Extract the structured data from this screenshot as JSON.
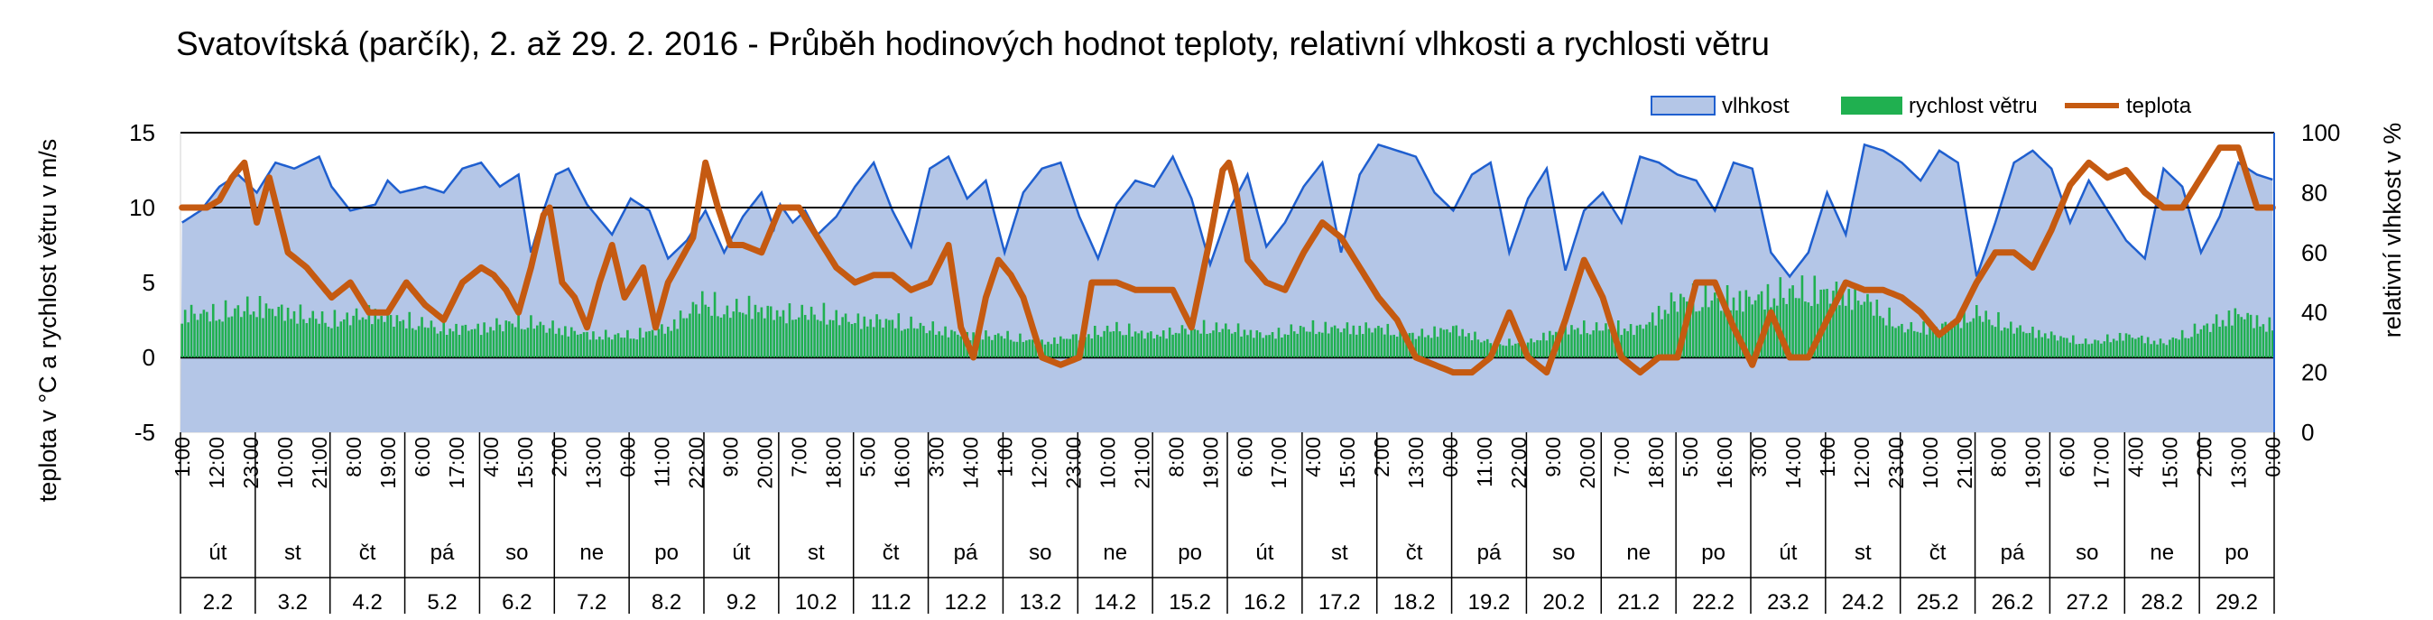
{
  "chart_data": {
    "type": "area+bar+line",
    "title": "Svatovítská (parčík), 2. až 29. 2. 2016 - Průběh hodinových hodnot teploty, relativní vlhkosti a rychlosti větru",
    "y_left_label": "teplota v °C a rychlost větru v m/s",
    "y_right_label": "relativní vlhkost v %",
    "y_left_range": [
      -5,
      15
    ],
    "y_left_ticks": [
      "15",
      "10",
      "5",
      "0",
      "-5"
    ],
    "y_right_range": [
      0,
      100
    ],
    "y_right_ticks": [
      "100",
      "80",
      "60",
      "40",
      "20",
      "0"
    ],
    "legend_position": "top-right",
    "grid": "horizontal lines at 0, 10 and 15",
    "legend": [
      {
        "name": "vlhkost",
        "color": "#b4c6e7",
        "stroke": "#1f5fcf"
      },
      {
        "name": "rychlost větru",
        "color": "#20b050"
      },
      {
        "name": "teplota",
        "color": "#c55a11"
      }
    ],
    "hour_tick_labels": [
      "1:00",
      "12:00",
      "23:00",
      "10:00",
      "21:00",
      "8:00",
      "19:00",
      "6:00",
      "17:00",
      "4:00",
      "15:00",
      "2:00",
      "13:00",
      "0:00",
      "11:00",
      "22:00",
      "9:00",
      "20:00",
      "7:00",
      "18:00",
      "5:00",
      "16:00",
      "3:00",
      "14:00",
      "1:00",
      "12:00",
      "23:00",
      "10:00",
      "21:00",
      "8:00",
      "19:00",
      "6:00",
      "17:00",
      "4:00",
      "15:00",
      "2:00",
      "13:00",
      "0:00",
      "11:00",
      "22:00",
      "9:00",
      "20:00",
      "7:00",
      "18:00",
      "5:00",
      "16:00",
      "3:00",
      "14:00",
      "1:00",
      "12:00",
      "23:00",
      "10:00",
      "21:00",
      "8:00",
      "19:00",
      "6:00",
      "17:00",
      "4:00",
      "15:00",
      "2:00",
      "13:00",
      "0:00"
    ],
    "days": [
      {
        "weekday": "út",
        "date": "2.2"
      },
      {
        "weekday": "st",
        "date": "3.2"
      },
      {
        "weekday": "čt",
        "date": "4.2"
      },
      {
        "weekday": "pá",
        "date": "5.2"
      },
      {
        "weekday": "so",
        "date": "6.2"
      },
      {
        "weekday": "ne",
        "date": "7.2"
      },
      {
        "weekday": "po",
        "date": "8.2"
      },
      {
        "weekday": "út",
        "date": "9.2"
      },
      {
        "weekday": "st",
        "date": "10.2"
      },
      {
        "weekday": "čt",
        "date": "11.2"
      },
      {
        "weekday": "pá",
        "date": "12.2"
      },
      {
        "weekday": "so",
        "date": "13.2"
      },
      {
        "weekday": "ne",
        "date": "14.2"
      },
      {
        "weekday": "po",
        "date": "15.2"
      },
      {
        "weekday": "út",
        "date": "16.2"
      },
      {
        "weekday": "st",
        "date": "17.2"
      },
      {
        "weekday": "čt",
        "date": "18.2"
      },
      {
        "weekday": "pá",
        "date": "19.2"
      },
      {
        "weekday": "so",
        "date": "20.2"
      },
      {
        "weekday": "ne",
        "date": "21.2"
      },
      {
        "weekday": "po",
        "date": "22.2"
      },
      {
        "weekday": "út",
        "date": "23.2"
      },
      {
        "weekday": "st",
        "date": "24.2"
      },
      {
        "weekday": "čt",
        "date": "25.2"
      },
      {
        "weekday": "pá",
        "date": "26.2"
      },
      {
        "weekday": "so",
        "date": "27.2"
      },
      {
        "weekday": "ne",
        "date": "28.2"
      },
      {
        "weekday": "po",
        "date": "29.2"
      }
    ],
    "humidity_keypoints_pct": [
      [
        0,
        70
      ],
      [
        6,
        74
      ],
      [
        12,
        82
      ],
      [
        18,
        86
      ],
      [
        24,
        80
      ],
      [
        30,
        90
      ],
      [
        36,
        88
      ],
      [
        44,
        92
      ],
      [
        48,
        82
      ],
      [
        54,
        74
      ],
      [
        62,
        76
      ],
      [
        66,
        84
      ],
      [
        70,
        80
      ],
      [
        78,
        82
      ],
      [
        84,
        80
      ],
      [
        90,
        88
      ],
      [
        96,
        90
      ],
      [
        102,
        82
      ],
      [
        108,
        86
      ],
      [
        112,
        60
      ],
      [
        116,
        74
      ],
      [
        120,
        86
      ],
      [
        124,
        88
      ],
      [
        130,
        76
      ],
      [
        138,
        66
      ],
      [
        144,
        78
      ],
      [
        150,
        74
      ],
      [
        156,
        58
      ],
      [
        162,
        64
      ],
      [
        168,
        74
      ],
      [
        174,
        60
      ],
      [
        180,
        72
      ],
      [
        186,
        80
      ],
      [
        190,
        68
      ],
      [
        192,
        76
      ],
      [
        196,
        70
      ],
      [
        200,
        74
      ],
      [
        204,
        66
      ],
      [
        210,
        72
      ],
      [
        216,
        82
      ],
      [
        222,
        90
      ],
      [
        228,
        74
      ],
      [
        234,
        62
      ],
      [
        240,
        88
      ],
      [
        246,
        92
      ],
      [
        252,
        78
      ],
      [
        258,
        84
      ],
      [
        264,
        60
      ],
      [
        270,
        80
      ],
      [
        276,
        88
      ],
      [
        282,
        90
      ],
      [
        288,
        72
      ],
      [
        294,
        58
      ],
      [
        300,
        76
      ],
      [
        306,
        84
      ],
      [
        312,
        82
      ],
      [
        318,
        92
      ],
      [
        324,
        78
      ],
      [
        330,
        56
      ],
      [
        336,
        74
      ],
      [
        342,
        86
      ],
      [
        348,
        62
      ],
      [
        354,
        70
      ],
      [
        360,
        82
      ],
      [
        366,
        90
      ],
      [
        372,
        60
      ],
      [
        378,
        86
      ],
      [
        384,
        96
      ],
      [
        390,
        94
      ],
      [
        396,
        92
      ],
      [
        402,
        80
      ],
      [
        408,
        74
      ],
      [
        414,
        86
      ],
      [
        420,
        90
      ],
      [
        426,
        60
      ],
      [
        432,
        78
      ],
      [
        438,
        88
      ],
      [
        444,
        54
      ],
      [
        450,
        74
      ],
      [
        456,
        80
      ],
      [
        462,
        70
      ],
      [
        468,
        92
      ],
      [
        474,
        90
      ],
      [
        480,
        86
      ],
      [
        486,
        84
      ],
      [
        492,
        74
      ],
      [
        498,
        90
      ],
      [
        504,
        88
      ],
      [
        510,
        60
      ],
      [
        516,
        52
      ],
      [
        522,
        60
      ],
      [
        528,
        80
      ],
      [
        534,
        66
      ],
      [
        540,
        96
      ],
      [
        546,
        94
      ],
      [
        552,
        90
      ],
      [
        558,
        84
      ],
      [
        564,
        94
      ],
      [
        570,
        90
      ],
      [
        576,
        52
      ],
      [
        582,
        70
      ],
      [
        588,
        90
      ],
      [
        594,
        94
      ],
      [
        600,
        88
      ],
      [
        606,
        70
      ],
      [
        612,
        84
      ],
      [
        618,
        74
      ],
      [
        624,
        64
      ],
      [
        630,
        58
      ],
      [
        636,
        88
      ],
      [
        642,
        82
      ],
      [
        648,
        60
      ],
      [
        654,
        72
      ],
      [
        660,
        90
      ],
      [
        666,
        86
      ],
      [
        672,
        84
      ]
    ],
    "temperature_keypoints_c": [
      [
        0,
        10
      ],
      [
        8,
        10
      ],
      [
        12,
        10.5
      ],
      [
        16,
        12
      ],
      [
        20,
        13
      ],
      [
        24,
        9
      ],
      [
        28,
        12
      ],
      [
        34,
        7
      ],
      [
        40,
        6
      ],
      [
        48,
        4
      ],
      [
        54,
        5
      ],
      [
        60,
        3
      ],
      [
        66,
        3
      ],
      [
        72,
        5
      ],
      [
        78,
        3.5
      ],
      [
        84,
        2.5
      ],
      [
        90,
        5
      ],
      [
        96,
        6
      ],
      [
        100,
        5.5
      ],
      [
        104,
        4.5
      ],
      [
        108,
        3
      ],
      [
        112,
        6
      ],
      [
        116,
        9.5
      ],
      [
        118,
        10
      ],
      [
        122,
        5
      ],
      [
        126,
        4
      ],
      [
        130,
        2
      ],
      [
        134,
        5
      ],
      [
        138,
        7.5
      ],
      [
        142,
        4
      ],
      [
        148,
        6
      ],
      [
        152,
        2
      ],
      [
        156,
        5
      ],
      [
        160,
        6.5
      ],
      [
        164,
        8
      ],
      [
        168,
        13
      ],
      [
        172,
        10
      ],
      [
        176,
        7.5
      ],
      [
        180,
        7.5
      ],
      [
        186,
        7
      ],
      [
        192,
        10
      ],
      [
        198,
        10
      ],
      [
        204,
        8
      ],
      [
        210,
        6
      ],
      [
        216,
        5
      ],
      [
        222,
        5.5
      ],
      [
        228,
        5.5
      ],
      [
        234,
        4.5
      ],
      [
        240,
        5
      ],
      [
        246,
        7.5
      ],
      [
        250,
        2
      ],
      [
        254,
        0
      ],
      [
        258,
        4
      ],
      [
        262,
        6.5
      ],
      [
        266,
        5.5
      ],
      [
        270,
        4
      ],
      [
        276,
        0
      ],
      [
        282,
        -0.5
      ],
      [
        288,
        0
      ],
      [
        292,
        5
      ],
      [
        296,
        5
      ],
      [
        300,
        5
      ],
      [
        306,
        4.5
      ],
      [
        312,
        4.5
      ],
      [
        318,
        4.5
      ],
      [
        324,
        2
      ],
      [
        330,
        8
      ],
      [
        334,
        12.5
      ],
      [
        336,
        13
      ],
      [
        338,
        11.5
      ],
      [
        342,
        6.5
      ],
      [
        348,
        5
      ],
      [
        354,
        4.5
      ],
      [
        360,
        7
      ],
      [
        366,
        9
      ],
      [
        372,
        8
      ],
      [
        378,
        6
      ],
      [
        384,
        4
      ],
      [
        390,
        2.5
      ],
      [
        396,
        0
      ],
      [
        402,
        -0.5
      ],
      [
        408,
        -1
      ],
      [
        414,
        -1
      ],
      [
        420,
        0
      ],
      [
        426,
        3
      ],
      [
        432,
        0
      ],
      [
        438,
        -1
      ],
      [
        444,
        2.5
      ],
      [
        450,
        6.5
      ],
      [
        456,
        4
      ],
      [
        462,
        0
      ],
      [
        468,
        -1
      ],
      [
        474,
        0
      ],
      [
        480,
        0
      ],
      [
        486,
        5
      ],
      [
        492,
        5
      ],
      [
        498,
        2
      ],
      [
        504,
        -0.5
      ],
      [
        510,
        3
      ],
      [
        516,
        0
      ],
      [
        522,
        0
      ],
      [
        528,
        2.5
      ],
      [
        534,
        5
      ],
      [
        540,
        4.5
      ],
      [
        546,
        4.5
      ],
      [
        552,
        4
      ],
      [
        558,
        3
      ],
      [
        564,
        1.5
      ],
      [
        570,
        2.5
      ],
      [
        576,
        5
      ],
      [
        582,
        7
      ],
      [
        588,
        7
      ],
      [
        594,
        6
      ],
      [
        600,
        8.5
      ],
      [
        606,
        11.5
      ],
      [
        612,
        13
      ],
      [
        618,
        12
      ],
      [
        624,
        12.5
      ],
      [
        630,
        11
      ],
      [
        636,
        10
      ],
      [
        642,
        10
      ],
      [
        648,
        12
      ],
      [
        654,
        14
      ],
      [
        660,
        14
      ],
      [
        666,
        10
      ],
      [
        672,
        10
      ]
    ],
    "wind_keypoints_ms": [
      [
        0,
        3
      ],
      [
        12,
        3
      ],
      [
        24,
        3.5
      ],
      [
        36,
        3
      ],
      [
        48,
        2.5
      ],
      [
        60,
        3
      ],
      [
        72,
        2.5
      ],
      [
        84,
        2
      ],
      [
        96,
        2
      ],
      [
        108,
        2.5
      ],
      [
        120,
        2
      ],
      [
        132,
        1.5
      ],
      [
        144,
        1.5
      ],
      [
        156,
        2
      ],
      [
        168,
        4
      ],
      [
        174,
        3
      ],
      [
        180,
        3.5
      ],
      [
        192,
        3
      ],
      [
        204,
        3
      ],
      [
        216,
        2.5
      ],
      [
        228,
        2.5
      ],
      [
        240,
        2
      ],
      [
        252,
        1.5
      ],
      [
        264,
        1.5
      ],
      [
        276,
        1
      ],
      [
        288,
        1.5
      ],
      [
        300,
        2
      ],
      [
        312,
        1.5
      ],
      [
        324,
        2
      ],
      [
        336,
        2
      ],
      [
        348,
        1.5
      ],
      [
        360,
        2
      ],
      [
        372,
        2
      ],
      [
        384,
        2
      ],
      [
        396,
        1.5
      ],
      [
        408,
        2
      ],
      [
        420,
        1
      ],
      [
        432,
        1
      ],
      [
        444,
        2
      ],
      [
        456,
        2
      ],
      [
        468,
        2
      ],
      [
        480,
        4
      ],
      [
        492,
        4
      ],
      [
        504,
        4
      ],
      [
        516,
        4.5
      ],
      [
        528,
        4.5
      ],
      [
        540,
        4
      ],
      [
        552,
        2
      ],
      [
        564,
        2
      ],
      [
        576,
        3
      ],
      [
        588,
        2
      ],
      [
        600,
        1.5
      ],
      [
        612,
        1
      ],
      [
        624,
        1.5
      ],
      [
        636,
        1
      ],
      [
        648,
        2
      ],
      [
        660,
        3
      ],
      [
        672,
        2
      ]
    ]
  }
}
